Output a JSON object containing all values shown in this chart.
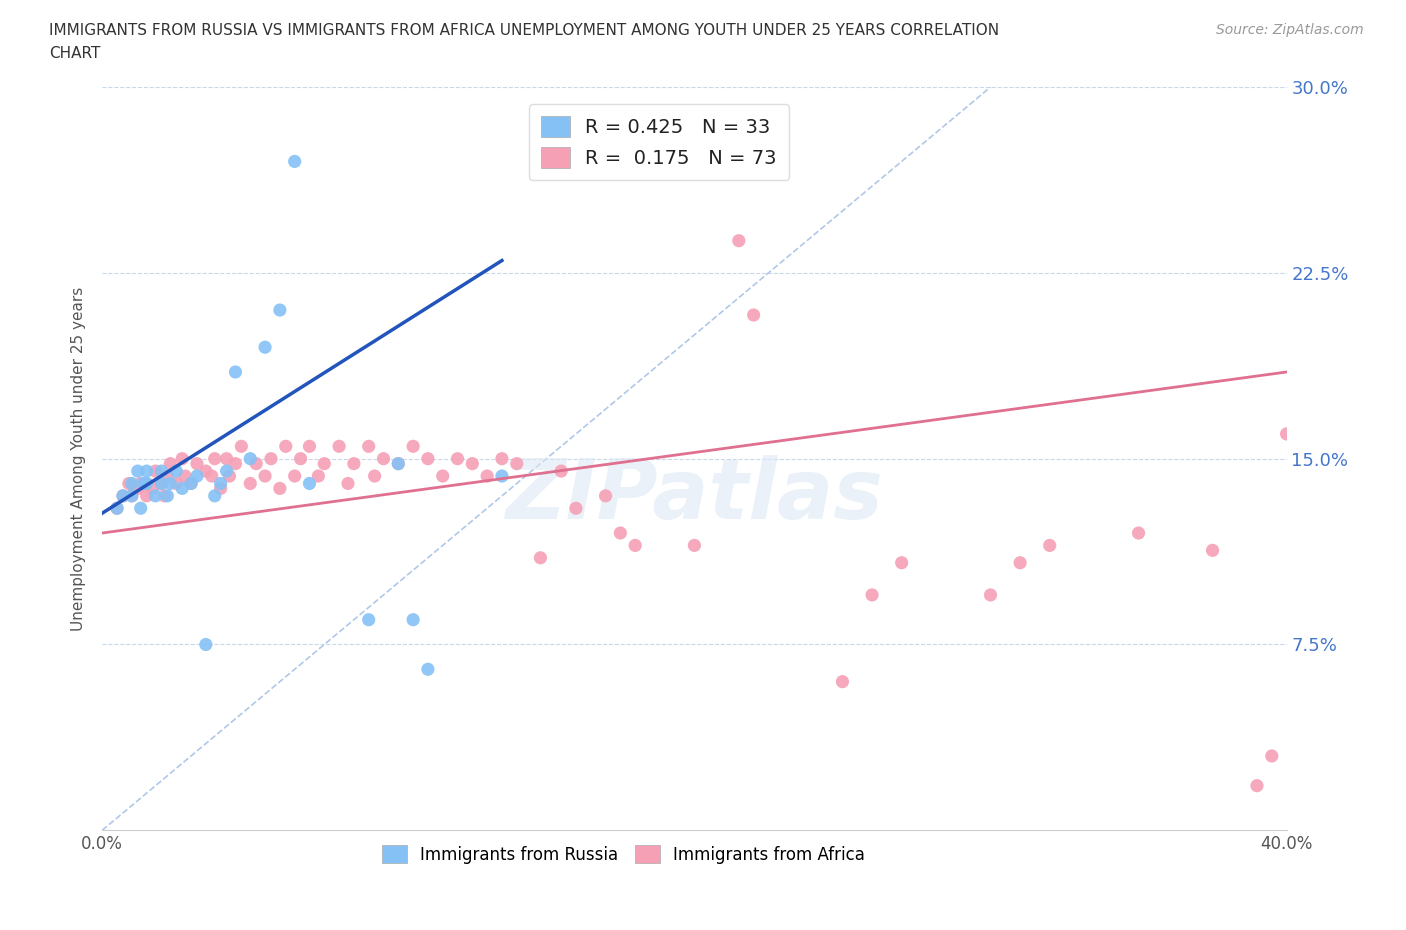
{
  "title_line1": "IMMIGRANTS FROM RUSSIA VS IMMIGRANTS FROM AFRICA UNEMPLOYMENT AMONG YOUTH UNDER 25 YEARS CORRELATION",
  "title_line2": "CHART",
  "source_text": "Source: ZipAtlas.com",
  "ylabel": "Unemployment Among Youth under 25 years",
  "xlim": [
    0.0,
    0.4
  ],
  "ylim": [
    0.0,
    0.3
  ],
  "russia_color": "#85c1f5",
  "africa_color": "#f5a0b5",
  "russia_line_color": "#2255bb",
  "africa_line_color": "#e07090",
  "diagonal_color": "#b0c8e8",
  "legend_R_russia": "0.425",
  "legend_N_russia": "33",
  "legend_R_africa": "0.175",
  "legend_N_africa": "73",
  "russia_x": [
    0.005,
    0.007,
    0.01,
    0.01,
    0.012,
    0.013,
    0.014,
    0.015,
    0.015,
    0.018,
    0.02,
    0.02,
    0.022,
    0.023,
    0.025,
    0.027,
    0.03,
    0.032,
    0.035,
    0.038,
    0.04,
    0.042,
    0.045,
    0.05,
    0.055,
    0.06,
    0.065,
    0.07,
    0.09,
    0.1,
    0.105,
    0.11,
    0.135
  ],
  "russia_y": [
    0.13,
    0.135,
    0.135,
    0.14,
    0.145,
    0.13,
    0.14,
    0.14,
    0.145,
    0.135,
    0.14,
    0.145,
    0.135,
    0.14,
    0.145,
    0.138,
    0.14,
    0.143,
    0.075,
    0.135,
    0.14,
    0.145,
    0.185,
    0.15,
    0.195,
    0.21,
    0.27,
    0.14,
    0.085,
    0.148,
    0.085,
    0.065,
    0.143
  ],
  "africa_x": [
    0.005,
    0.007,
    0.009,
    0.01,
    0.012,
    0.013,
    0.015,
    0.015,
    0.017,
    0.018,
    0.02,
    0.021,
    0.022,
    0.023,
    0.025,
    0.027,
    0.028,
    0.03,
    0.032,
    0.035,
    0.037,
    0.038,
    0.04,
    0.042,
    0.043,
    0.045,
    0.047,
    0.05,
    0.052,
    0.055,
    0.057,
    0.06,
    0.062,
    0.065,
    0.067,
    0.07,
    0.073,
    0.075,
    0.08,
    0.083,
    0.085,
    0.09,
    0.092,
    0.095,
    0.1,
    0.105,
    0.11,
    0.115,
    0.12,
    0.125,
    0.13,
    0.135,
    0.14,
    0.148,
    0.155,
    0.16,
    0.17,
    0.175,
    0.18,
    0.2,
    0.215,
    0.22,
    0.25,
    0.26,
    0.27,
    0.3,
    0.31,
    0.32,
    0.35,
    0.375,
    0.39,
    0.395,
    0.4
  ],
  "africa_y": [
    0.13,
    0.135,
    0.14,
    0.135,
    0.138,
    0.14,
    0.135,
    0.14,
    0.138,
    0.145,
    0.14,
    0.135,
    0.143,
    0.148,
    0.14,
    0.15,
    0.143,
    0.14,
    0.148,
    0.145,
    0.143,
    0.15,
    0.138,
    0.15,
    0.143,
    0.148,
    0.155,
    0.14,
    0.148,
    0.143,
    0.15,
    0.138,
    0.155,
    0.143,
    0.15,
    0.155,
    0.143,
    0.148,
    0.155,
    0.14,
    0.148,
    0.155,
    0.143,
    0.15,
    0.148,
    0.155,
    0.15,
    0.143,
    0.15,
    0.148,
    0.143,
    0.15,
    0.148,
    0.11,
    0.145,
    0.13,
    0.135,
    0.12,
    0.115,
    0.115,
    0.238,
    0.208,
    0.06,
    0.095,
    0.108,
    0.095,
    0.108,
    0.115,
    0.12,
    0.113,
    0.018,
    0.03,
    0.16
  ]
}
